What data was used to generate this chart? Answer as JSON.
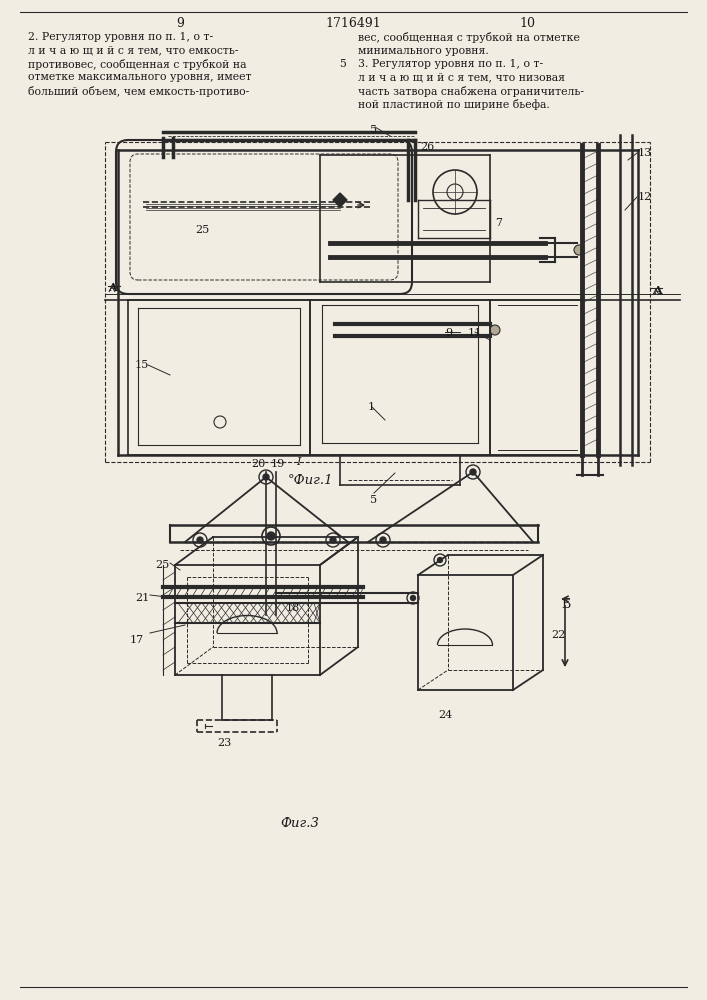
{
  "page_number_left": "9",
  "patent_number": "1716491",
  "page_number_right": "10",
  "background_color": "#f2ede3",
  "text_color": "#1a1a1a",
  "line_color": "#2a2a2a",
  "text_left": [
    "2. Регулятор уровня по п. 1, о т-",
    "л и ч а ю щ и й с я тем, что емкость-",
    "противовес, сообщенная с трубкой на",
    "отметке максимального уровня, имеет",
    "больший объем, чем емкость-противо-"
  ],
  "text_right": [
    "вес, сообщенная с трубкой на отметке",
    "минимального уровня.",
    "3. Регулятор уровня по п. 1, о т-",
    "л и ч а ю щ и й с я тем, что низовая",
    "часть затвора снабжена ограничитель-",
    "ной пластиной по ширине бьефа."
  ],
  "fig1_caption": "°Фиг.1",
  "fig3_caption": "Фиг.3"
}
